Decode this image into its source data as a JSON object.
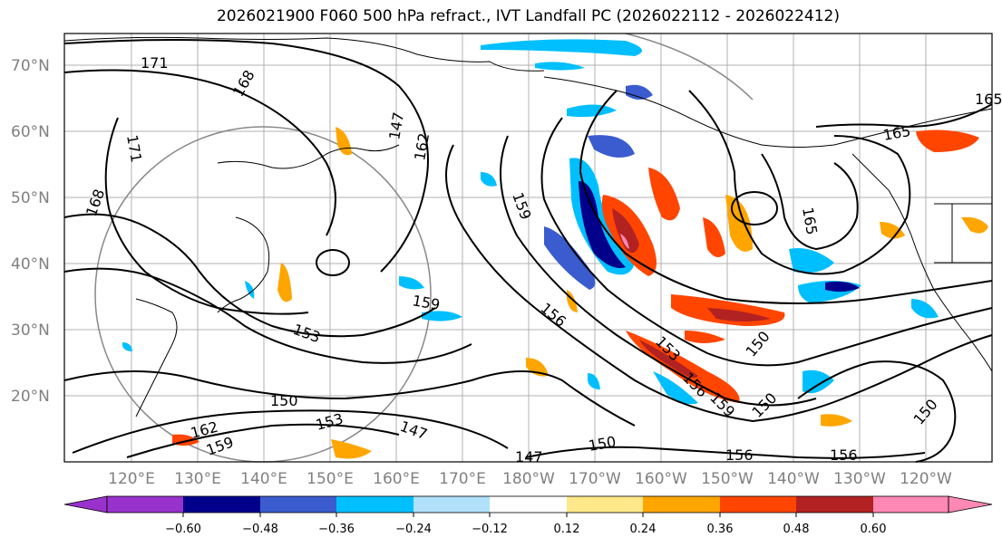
{
  "title": "2026021900 F060 500 hPa refract., IVT Landfall PC (2026022112 - 2026022412)",
  "lat_labels": [
    "70°N",
    "60°N",
    "50°N",
    "40°N",
    "30°N",
    "20°N"
  ],
  "lon_labels": [
    "120°E",
    "130°E",
    "140°E",
    "150°E",
    "160°E",
    "170°E",
    "180°W",
    "170°W",
    "160°W",
    "150°W",
    "140°W",
    "130°W",
    "120°W"
  ],
  "contour_labels": [
    "171",
    "168",
    "171",
    "168",
    "162",
    "159",
    "153",
    "150",
    "153",
    "147",
    "147",
    "150",
    "159",
    "156",
    "153",
    "156",
    "159",
    "150",
    "150",
    "156",
    "156",
    "165",
    "165",
    "165",
    "150",
    "147",
    "162",
    "159"
  ],
  "colorbar": {
    "ticks": [
      "−0.60",
      "−0.48",
      "−0.36",
      "−0.24",
      "−0.12",
      "0.12",
      "0.24",
      "0.36",
      "0.48",
      "0.60"
    ],
    "colors": [
      "#9932cc",
      "#00008b",
      "#3a5ccf",
      "#00bfff",
      "#b0e0fa",
      "#ffffff",
      "#ffe88a",
      "#ffa500",
      "#ff4500",
      "#b22222",
      "#ff88b4",
      "#ff88b4"
    ]
  },
  "colors": {
    "graticule": "#b0b0b0",
    "contour": "#000000",
    "axis_label": "#808080"
  }
}
